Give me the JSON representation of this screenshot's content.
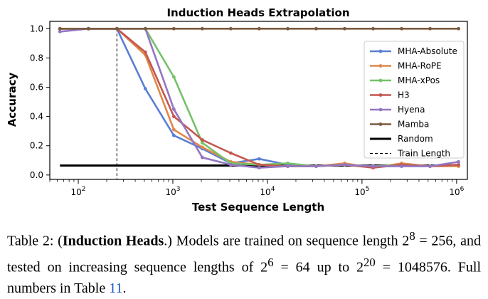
{
  "chart_data": {
    "type": "line",
    "title": "Induction Heads Extrapolation",
    "xlabel": "Test Sequence Length",
    "ylabel": "Accuracy",
    "xscale": "log",
    "xlim": [
      50,
      1300000
    ],
    "ylim": [
      -0.03,
      1.05
    ],
    "yticks": [
      0.0,
      0.2,
      0.4,
      0.6,
      0.8,
      1.0
    ],
    "ytick_labels": [
      "0.0",
      "0.2",
      "0.4",
      "0.6",
      "0.8",
      "1.0"
    ],
    "xtick_labels": [
      {
        "base": "10",
        "exp": "2",
        "value": 100
      },
      {
        "base": "10",
        "exp": "3",
        "value": 1000
      },
      {
        "base": "10",
        "exp": "4",
        "value": 10000
      },
      {
        "base": "10",
        "exp": "5",
        "value": 100000
      },
      {
        "base": "10",
        "exp": "6",
        "value": 1000000
      }
    ],
    "x": [
      64,
      128,
      256,
      512,
      1024,
      2048,
      4096,
      8192,
      16384,
      32768,
      65536,
      131072,
      262144,
      524288,
      1048576
    ],
    "series": [
      {
        "name": "MHA-Absolute",
        "color": "#5b7fd4",
        "values": [
          1.0,
          1.0,
          1.0,
          0.59,
          0.27,
          0.18,
          0.08,
          0.11,
          0.07,
          0.06,
          0.07,
          0.06,
          0.06,
          0.06,
          0.07
        ]
      },
      {
        "name": "MHA-RoPE",
        "color": "#e0884a",
        "values": [
          1.0,
          1.0,
          1.0,
          0.82,
          0.31,
          0.19,
          0.09,
          0.07,
          0.06,
          0.06,
          0.08,
          0.05,
          0.08,
          0.06,
          0.06
        ]
      },
      {
        "name": "MHA-xPos",
        "color": "#76c16b",
        "values": [
          1.0,
          1.0,
          1.0,
          1.0,
          0.67,
          0.22,
          0.08,
          0.07,
          0.08,
          0.06,
          0.07,
          0.06,
          0.07,
          0.06,
          0.07
        ]
      },
      {
        "name": "H3",
        "color": "#c4574f",
        "values": [
          1.0,
          1.0,
          1.0,
          0.84,
          0.4,
          0.24,
          0.15,
          0.07,
          0.06,
          0.06,
          0.07,
          0.05,
          0.07,
          0.06,
          0.07
        ]
      },
      {
        "name": "Hyena",
        "color": "#9276c2",
        "values": [
          0.98,
          1.0,
          1.0,
          1.0,
          0.45,
          0.12,
          0.07,
          0.05,
          0.06,
          0.06,
          0.07,
          0.06,
          0.06,
          0.06,
          0.09
        ]
      },
      {
        "name": "Mamba",
        "color": "#7a5a3e",
        "values": [
          1.0,
          1.0,
          1.0,
          1.0,
          1.0,
          1.0,
          1.0,
          1.0,
          1.0,
          1.0,
          1.0,
          1.0,
          1.0,
          1.0,
          1.0
        ]
      }
    ],
    "random": {
      "name": "Random",
      "color": "#000000",
      "value": 0.065,
      "x_range": [
        64,
        1048576
      ]
    },
    "train_length": {
      "name": "Train Length",
      "color": "#000000",
      "x": 256
    },
    "legend_position": "center-right"
  },
  "caption": {
    "prefix": "Table 2: (",
    "bold": "Induction Heads",
    "after_bold": ".) Models are trained on sequence length 2",
    "exp1": "8",
    "mid1": " = 256, and tested on increasing sequence lengths of 2",
    "exp2": "6",
    "mid2": " = 64 up to 2",
    "exp3": "20",
    "mid3": " = 1048576. Full numbers in Table ",
    "ref": "11",
    "end": "."
  }
}
